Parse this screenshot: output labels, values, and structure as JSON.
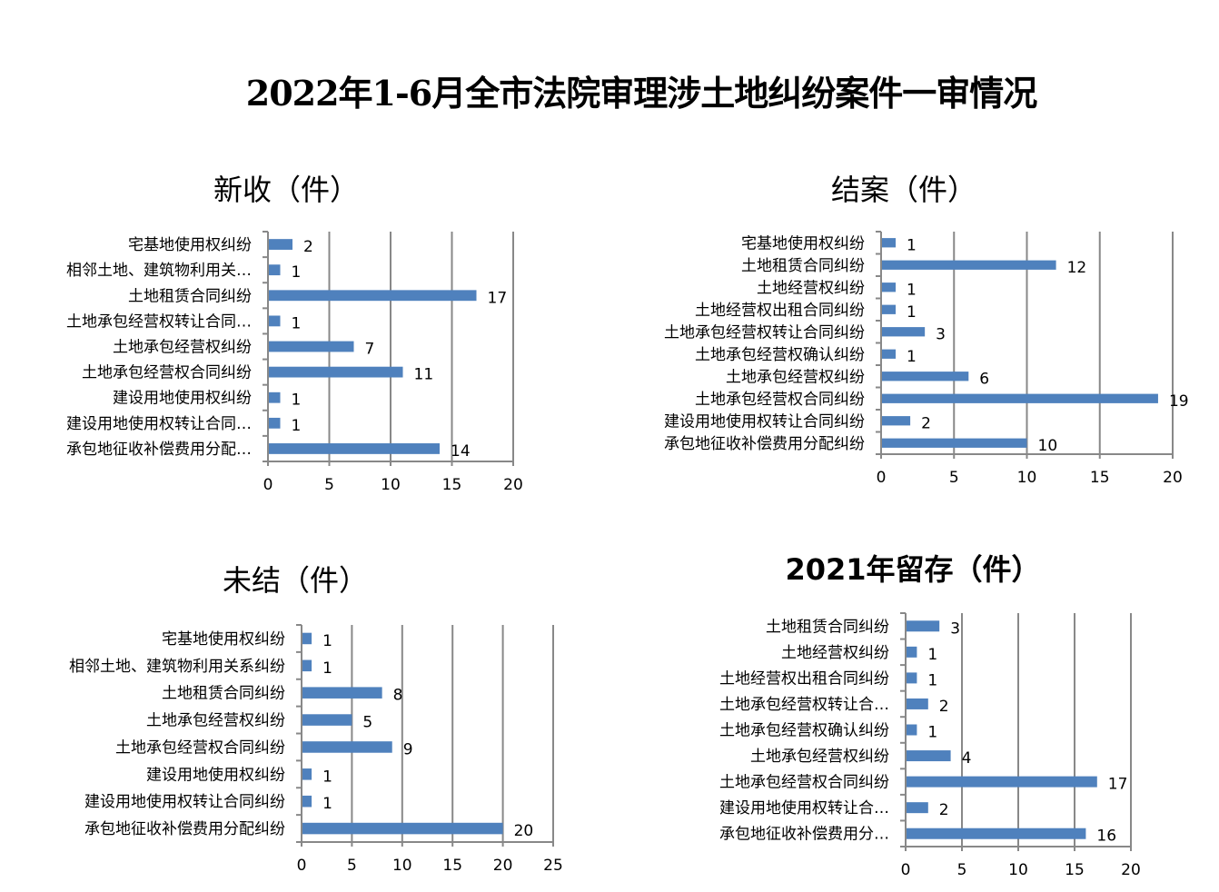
{
  "title": "2022年1-6月全市法院审理涉土地纠纷案件一审情况",
  "colors": {
    "bar": "#4f81bd",
    "grid": "#888888"
  },
  "chart_data": [
    {
      "type": "bar",
      "orientation": "horizontal",
      "title": "新收（件）",
      "categories": [
        "宅基地使用权纠纷",
        "相邻土地、建筑物利用关…",
        "土地租赁合同纠纷",
        "土地承包经营权转让合同…",
        "土地承包经营权纠纷",
        "土地承包经营权合同纠纷",
        "建设用地使用权纠纷",
        "建设用地使用权转让合同…",
        "承包地征收补偿费用分配…"
      ],
      "values": [
        2,
        1,
        17,
        1,
        7,
        11,
        1,
        1,
        14
      ],
      "xlim": [
        0,
        20
      ],
      "xticks": [
        0,
        5,
        10,
        15,
        20
      ],
      "grid": true
    },
    {
      "type": "bar",
      "orientation": "horizontal",
      "title": "结案（件）",
      "categories": [
        "宅基地使用权纠纷",
        "土地租赁合同纠纷",
        "土地经营权纠纷",
        "土地经营权出租合同纠纷",
        "土地承包经营权转让合同纠纷",
        "土地承包经营权确认纠纷",
        "土地承包经营权纠纷",
        "土地承包经营权合同纠纷",
        "建设用地使用权转让合同纠纷",
        "承包地征收补偿费用分配纠纷"
      ],
      "values": [
        1,
        12,
        1,
        1,
        3,
        1,
        6,
        19,
        2,
        10
      ],
      "xlim": [
        0,
        20
      ],
      "xticks": [
        0,
        5,
        10,
        15,
        20
      ],
      "grid": true
    },
    {
      "type": "bar",
      "orientation": "horizontal",
      "title": "未结（件）",
      "categories": [
        "宅基地使用权纠纷",
        "相邻土地、建筑物利用关系纠纷",
        "土地租赁合同纠纷",
        "土地承包经营权纠纷",
        "土地承包经营权合同纠纷",
        "建设用地使用权纠纷",
        "建设用地使用权转让合同纠纷",
        "承包地征收补偿费用分配纠纷"
      ],
      "values": [
        1,
        1,
        8,
        5,
        9,
        1,
        1,
        20
      ],
      "xlim": [
        0,
        25
      ],
      "xticks": [
        0,
        5,
        10,
        15,
        20,
        25
      ],
      "grid": true
    },
    {
      "type": "bar",
      "orientation": "horizontal",
      "title": "2021年留存（件）",
      "categories": [
        "土地租赁合同纠纷",
        "土地经营权纠纷",
        "土地经营权出租合同纠纷",
        "土地承包经营权转让合…",
        "土地承包经营权确认纠纷",
        "土地承包经营权纠纷",
        "土地承包经营权合同纠纷",
        "建设用地使用权转让合…",
        "承包地征收补偿费用分…"
      ],
      "values": [
        3,
        1,
        1,
        2,
        1,
        4,
        17,
        2,
        16
      ],
      "xlim": [
        0,
        20
      ],
      "xticks": [
        0,
        5,
        10,
        15,
        20
      ],
      "grid": true
    }
  ]
}
